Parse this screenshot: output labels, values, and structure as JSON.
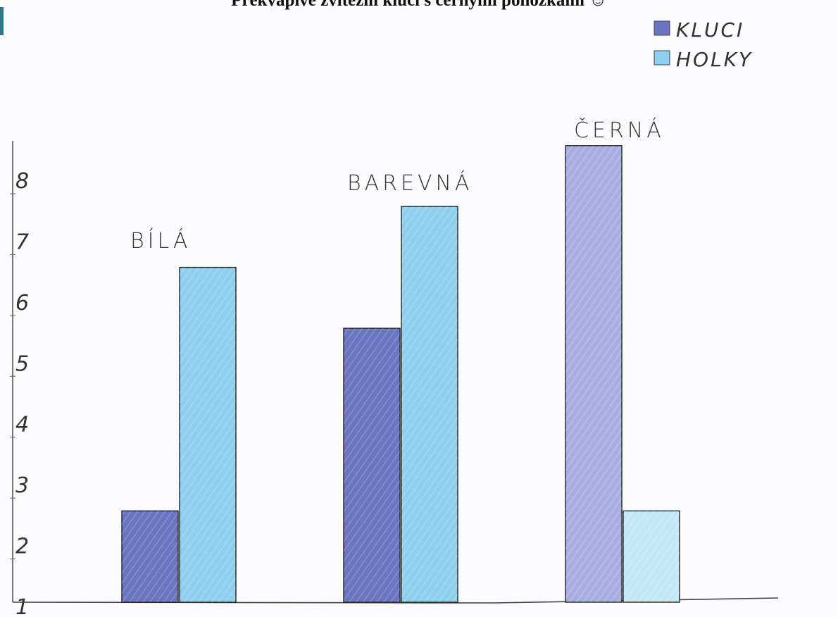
{
  "chart_data": {
    "type": "bar",
    "title": "Překvapivě zvítězili kluci s černými ponožkami ☺",
    "xlabel": "",
    "ylabel": "",
    "ylim": [
      1,
      8.7
    ],
    "y_ticks": [
      "1",
      "2",
      "3",
      "4",
      "5",
      "6",
      "7",
      "8"
    ],
    "categories": [
      "BÍLÁ",
      "BAREVNÁ",
      "ČERNÁ"
    ],
    "series": [
      {
        "name": "KLUCI",
        "values": [
          2.5,
          5.5,
          8.5
        ]
      },
      {
        "name": "HOLKY",
        "values": [
          6.5,
          7.5,
          2.5
        ]
      }
    ],
    "grid": false,
    "legend": "top-right",
    "colors": {
      "KLUCI": "#6c75c2",
      "HOLKY": "#8fd0ee",
      "KLUCI_CERNA": "#a9aee0",
      "HOLKY_CERNA": "#c3e8f5"
    }
  }
}
